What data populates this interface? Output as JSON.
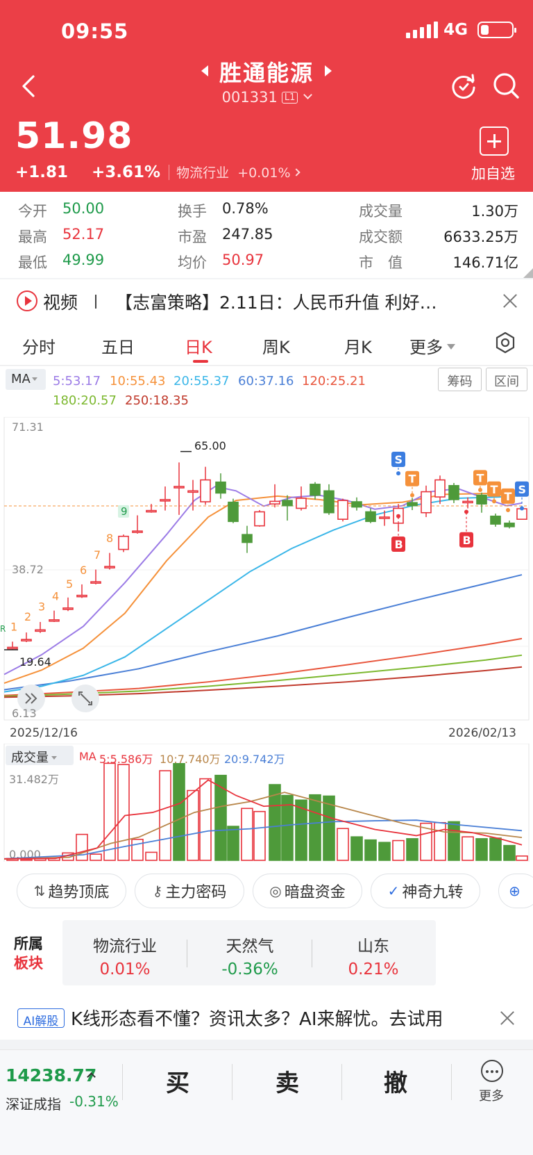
{
  "status": {
    "time": "09:55",
    "network": "4G",
    "battery_level": 0.25
  },
  "header": {
    "stock_name": "胜通能源",
    "stock_code": "001331",
    "level_badge": "L1",
    "price": "51.98",
    "change": "+1.81",
    "change_pct": "+3.61%",
    "industry": "物流行业",
    "industry_change": "+0.01%",
    "add_watch_label": "加自选",
    "icons": [
      "back-icon",
      "prev-icon",
      "next-icon",
      "refresh-icon",
      "search-icon",
      "plus-icon"
    ]
  },
  "stats": {
    "open_label": "今开",
    "open": "50.00",
    "high_label": "最高",
    "high": "52.17",
    "low_label": "最低",
    "low": "49.99",
    "turnover_label": "换手",
    "turnover": "0.78%",
    "pe_label": "市盈",
    "pe": "247.85",
    "avg_label": "均价",
    "avg": "50.97",
    "volume_label": "成交量",
    "volume": "1.30万",
    "amount_label": "成交额",
    "amount": "6633.25万",
    "mcap_label": "市　值",
    "mcap": "146.71亿"
  },
  "news": {
    "tag": "视频",
    "text": "【志富策略】2.11日：人民币升值 利好…"
  },
  "tabs": {
    "items": [
      "分时",
      "五日",
      "日K",
      "周K",
      "月K",
      "更多"
    ],
    "active": "日K"
  },
  "chart": {
    "ma_selector": "MA",
    "ma_values": {
      "ma5": "5:53.17",
      "ma10": "10:55.43",
      "ma20": "20:55.37",
      "ma60": "60:37.16",
      "ma120": "120:25.21",
      "ma180": "180:20.57",
      "ma250": "250:18.35"
    },
    "colors": {
      "up": "#e8333c",
      "down": "#4e9a3a",
      "ma5": "#9b7be6",
      "ma10": "#f5913a",
      "ma20": "#3ab6e8",
      "ma60": "#4a7fd6",
      "ma120": "#e8553c",
      "ma180": "#7cb82f",
      "ma250": "#c0392b"
    },
    "btn_chips": "筹码",
    "btn_range": "区间",
    "y_max": "71.31",
    "y_mid": "38.72",
    "y_min": "6.13",
    "high_marker": "65.00",
    "low_marker": "19.64",
    "date_start": "2025/12/16",
    "date_end": "2026/02/13",
    "signal_labels": {
      "b": "B",
      "s": "S",
      "t": "T",
      "r": "R",
      "d": "9"
    }
  },
  "volume": {
    "selector": "成交量",
    "ma_label": "MA",
    "ma5": "5:5.586万",
    "ma10": "10:7.740万",
    "ma20": "20:9.742万",
    "y_max": "31.482万",
    "y_min": "0.000"
  },
  "tools": [
    "趋势顶底",
    "主力密码",
    "暗盘资金",
    "神奇九转"
  ],
  "sector": {
    "label_1": "所属",
    "label_2": "板块",
    "items": [
      {
        "name": "物流行业",
        "pct": "0.01%"
      },
      {
        "name": "天然气",
        "pct": "-0.36%"
      },
      {
        "name": "山东",
        "pct": "0.21%"
      }
    ]
  },
  "ai": {
    "badge": "AI解股",
    "text": "K线形态看不懂？资讯太多？AI来解忧。去试用"
  },
  "bottom": {
    "index_value": "14238.77",
    "index_name": "深证成指",
    "index_pct": "-0.31%",
    "buy": "买",
    "sell": "卖",
    "cancel": "撤",
    "more": "更多"
  }
}
